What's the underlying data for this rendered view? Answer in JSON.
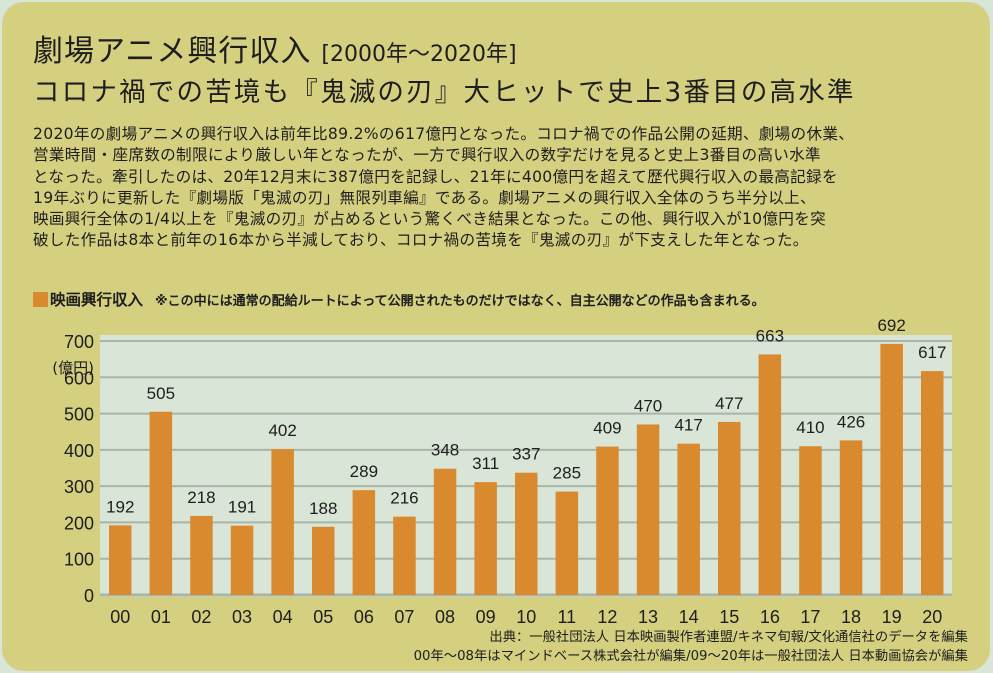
{
  "header": {
    "title": "劇場アニメ興行収入",
    "period": "[2000年〜2020年]",
    "subtitle": "コロナ禍での苦境も『鬼滅の刃』大ヒットで史上3番目の高水準"
  },
  "body_text": "2020年の劇場アニメの興行収入は前年比89.2%の617億円となった。コロナ禍での作品公開の延期、劇場の休業、\n営業時間・座席数の制限により厳しい年となったが、一方で興行収入の数字だけを見ると史上3番目の高い水準\nとなった。牽引したのは、20年12月末に387億円を記録し、21年に400億円を超えて歴代興行収入の最高記録を\n19年ぶりに更新した『劇場版「鬼滅の刃」無限列車編』である。劇場アニメの興行収入全体のうち半分以上、\n映画興行全体の1/4以上を『鬼滅の刃』が占めるという驚くべき結果となった。この他、興行収入が10億円を突\n破した作品は8本と前年の16本から半減しており、コロナ禍の苦境を『鬼滅の刃』が下支えした年となった。",
  "legend": {
    "name": "映画興行収入",
    "note": "※この中には通常の配給ルートによって公開されたものだけではなく、自主公開などの作品も含まれる。",
    "color": "#d98a2e"
  },
  "source": {
    "line1": "出典：一般社団法人 日本映画製作者連盟/キネマ旬報/文化通信社のデータを編集",
    "line2": "00年〜08年はマインドベース株式会社が編集/09〜20年は一般社団法人 日本動画協会が編集"
  },
  "colors": {
    "card": "#d5cf80",
    "plot_bg": "#d9e5d6",
    "bar": "#d98a2e",
    "grid": "#a9b5a6"
  },
  "chart_data": {
    "type": "bar",
    "title": "映画興行収入",
    "xlabel": "",
    "ylabel": "(億円)",
    "ylim": [
      0,
      700
    ],
    "yticks": [
      0,
      100,
      200,
      300,
      400,
      500,
      600,
      700
    ],
    "grid": true,
    "categories": [
      "00",
      "01",
      "02",
      "03",
      "04",
      "05",
      "06",
      "07",
      "08",
      "09",
      "10",
      "11",
      "12",
      "13",
      "14",
      "15",
      "16",
      "17",
      "18",
      "19",
      "20"
    ],
    "values": [
      192,
      505,
      218,
      191,
      402,
      188,
      289,
      216,
      348,
      311,
      337,
      285,
      409,
      470,
      417,
      477,
      663,
      410,
      426,
      692,
      617
    ]
  }
}
